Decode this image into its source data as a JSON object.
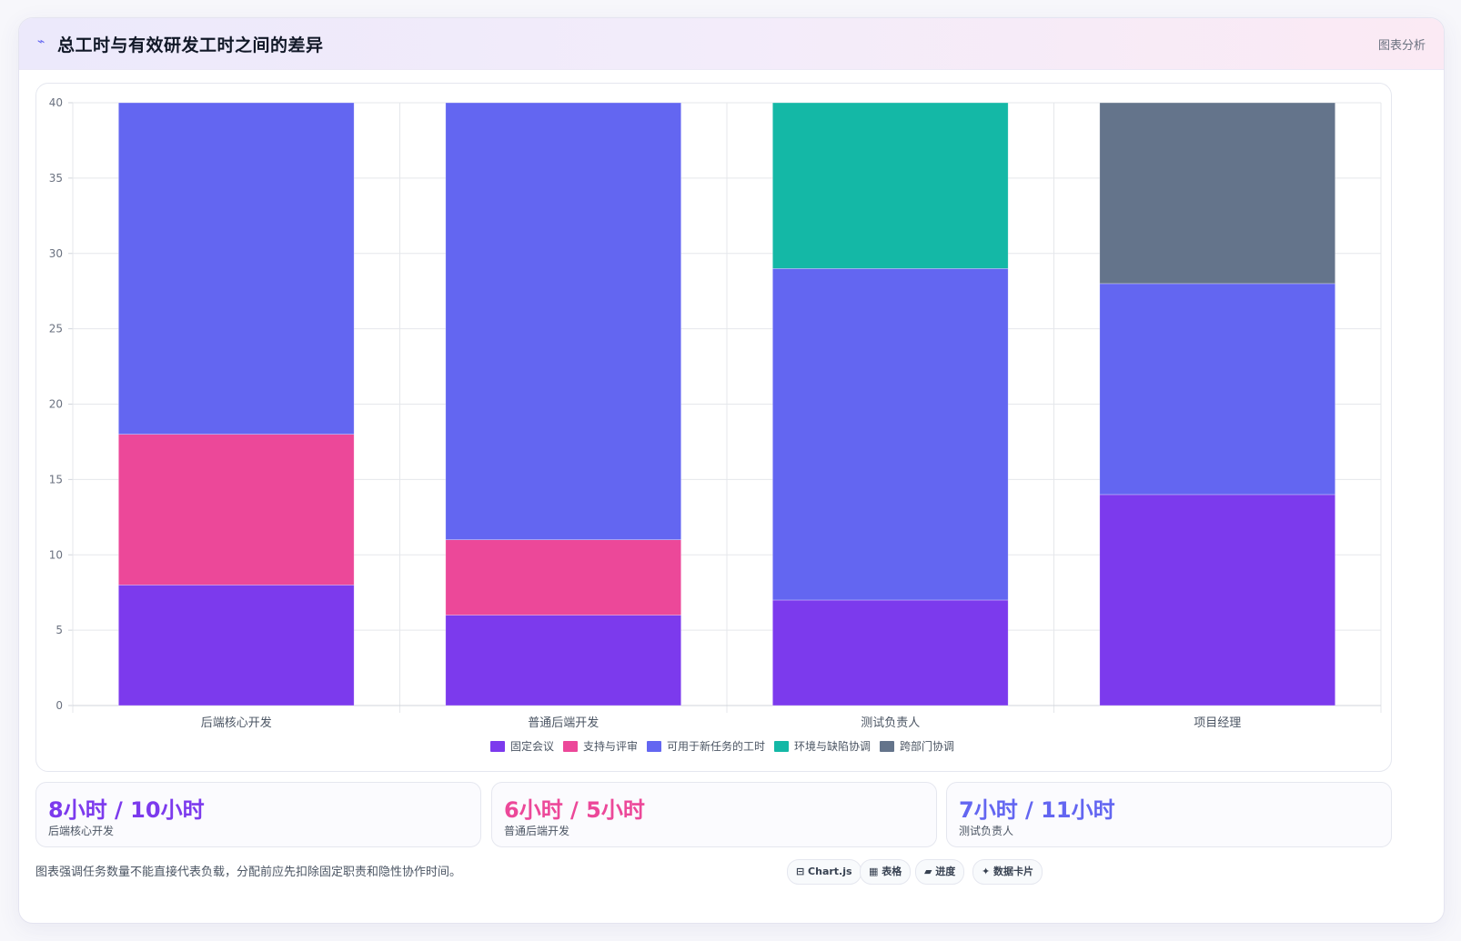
{
  "header": {
    "icon": "wave-icon",
    "title": "总工时与有效研发工时之间的差异",
    "link": "图表分析"
  },
  "chart_data": {
    "type": "bar",
    "stacked": true,
    "categories": [
      "后端核心开发",
      "普通后端开发",
      "测试负责人",
      "项目经理"
    ],
    "ylim": [
      0,
      40
    ],
    "yticks": [
      0,
      5,
      10,
      15,
      20,
      25,
      30,
      35,
      40
    ],
    "grid": true,
    "legend_position": "bottom",
    "series": [
      {
        "name": "固定会议",
        "color": "#7c3aed",
        "values": [
          8,
          6,
          7,
          14
        ]
      },
      {
        "name": "支持与评审",
        "color": "#ec4899",
        "values": [
          10,
          5,
          0,
          0
        ]
      },
      {
        "name": "可用于新任务的工时",
        "color": "#6366f1",
        "values": [
          22,
          29,
          22,
          14
        ]
      },
      {
        "name": "环境与缺陷协调",
        "color": "#14b8a6",
        "values": [
          0,
          0,
          11,
          0
        ]
      },
      {
        "name": "跨部门协调",
        "color": "#64748b",
        "values": [
          0,
          0,
          0,
          12
        ]
      }
    ]
  },
  "stats": [
    {
      "value": "8小时 / 10小时",
      "label": "后端核心开发",
      "color": "#7c3aed"
    },
    {
      "value": "6小时 / 5小时",
      "label": "普通后端开发",
      "color": "#ec4899"
    },
    {
      "value": "7小时 / 11小时",
      "label": "测试负责人",
      "color": "#6366f1"
    }
  ],
  "footer": {
    "note": "图表强调任务数量不能直接代表负载，分配前应先扣除固定职责和隐性协作时间。",
    "tags": [
      "⊟ Chart.js",
      "▦ 表格",
      "▰ 进度",
      "✦ 数据卡片"
    ]
  }
}
